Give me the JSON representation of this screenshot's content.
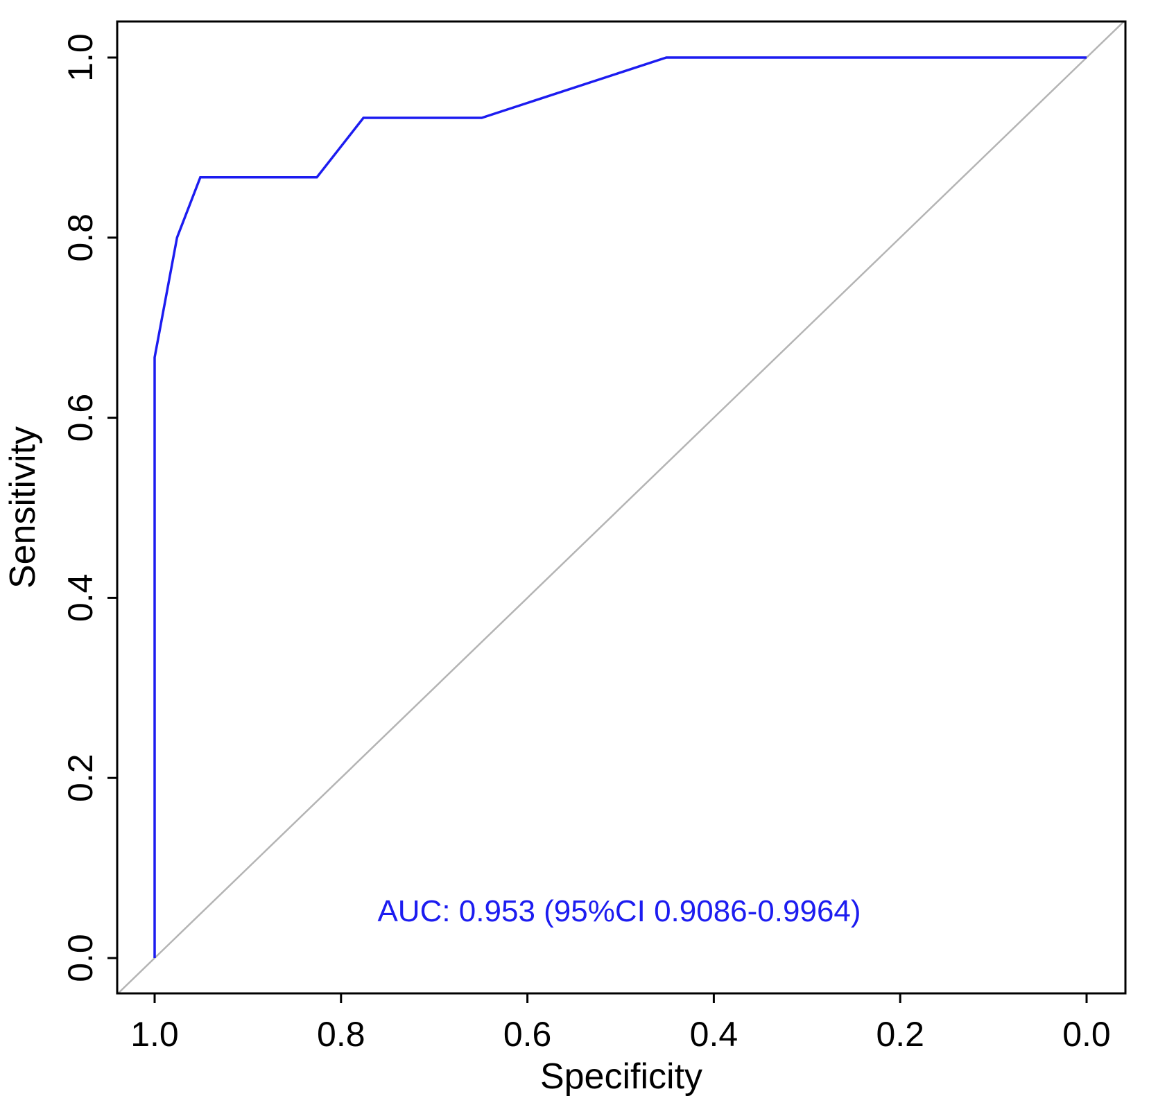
{
  "chart_data": {
    "type": "line",
    "title": "",
    "xlabel": "Specificity",
    "ylabel": "Sensitivity",
    "x_reversed": true,
    "xlim": [
      1.0,
      0.0
    ],
    "ylim": [
      0.0,
      1.0
    ],
    "xticks": [
      "1.0",
      "0.8",
      "0.6",
      "0.4",
      "0.2",
      "0.0"
    ],
    "yticks": [
      "0.0",
      "0.2",
      "0.4",
      "0.6",
      "0.8",
      "1.0"
    ],
    "grid": false,
    "series": [
      {
        "color": "#1c1cf0",
        "points": [
          {
            "x": 1.0,
            "y": 0.0
          },
          {
            "x": 1.0,
            "y": 0.667
          },
          {
            "x": 0.976,
            "y": 0.8
          },
          {
            "x": 0.951,
            "y": 0.867
          },
          {
            "x": 0.826,
            "y": 0.867
          },
          {
            "x": 0.776,
            "y": 0.933
          },
          {
            "x": 0.649,
            "y": 0.933
          },
          {
            "x": 0.451,
            "y": 1.0
          },
          {
            "x": 0.0,
            "y": 1.0
          }
        ]
      }
    ],
    "reference_line": {
      "color": "#b4b4b4",
      "from": {
        "x": 1.0,
        "y": 0.0
      },
      "to": {
        "x": 0.0,
        "y": 1.0
      }
    },
    "annotation": {
      "text": "AUC: 0.953 (95%CI 0.9086-0.9964)",
      "color": "#1c1cf0",
      "x": 0.5,
      "y": 0.05
    }
  }
}
